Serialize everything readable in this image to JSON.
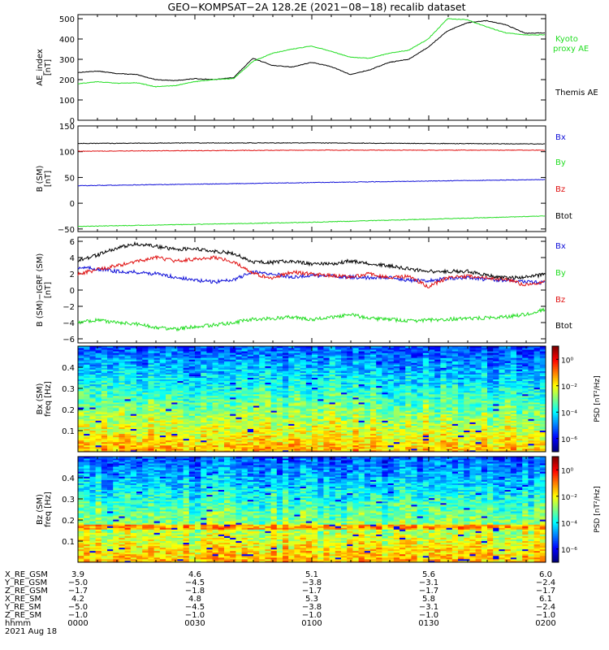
{
  "title": "GEO−KOMPSAT−2A 128.2E (2021−08−18) recalib dataset",
  "colors": {
    "black": "#000000",
    "green": "#22dd22",
    "red": "#e01010",
    "blue": "#1010d8"
  },
  "chart_data": [
    {
      "type": "line",
      "panel": "ae_index",
      "ylabel": [
        "AE_index",
        "[nT]"
      ],
      "ylim": [
        0,
        520
      ],
      "yticks": [
        0,
        100,
        200,
        300,
        400,
        500
      ],
      "x": [
        0,
        5,
        10,
        15,
        20,
        25,
        30,
        35,
        40,
        45,
        50,
        55,
        60,
        65,
        70,
        75,
        80,
        85,
        90,
        95,
        100,
        105,
        110,
        115,
        120
      ],
      "series": [
        {
          "name": "Themis AE",
          "color": "#000000",
          "values": [
            235,
            242,
            230,
            225,
            200,
            195,
            205,
            200,
            210,
            305,
            270,
            262,
            285,
            265,
            225,
            248,
            285,
            300,
            360,
            440,
            480,
            490,
            470,
            428,
            430
          ]
        },
        {
          "name": "Kyoto proxy AE",
          "color": "#22dd22",
          "values": [
            180,
            190,
            182,
            185,
            165,
            170,
            190,
            200,
            205,
            290,
            330,
            350,
            365,
            340,
            310,
            305,
            330,
            345,
            400,
            500,
            495,
            460,
            430,
            420,
            420
          ]
        }
      ],
      "legend": [
        {
          "text": "Kyoto",
          "color": "#22dd22"
        },
        {
          "text": "proxy AE",
          "color": "#22dd22"
        },
        {
          "text": "Themis AE",
          "color": "#000000"
        }
      ]
    },
    {
      "type": "line",
      "panel": "b_sm",
      "ylabel": [
        "B (SM)",
        "[nT]"
      ],
      "ylim": [
        -55,
        150
      ],
      "yticks": [
        -50,
        0,
        50,
        100,
        150
      ],
      "x": [
        0,
        30,
        60,
        90,
        120
      ],
      "series": [
        {
          "name": "Bx",
          "color": "#1010d8",
          "values": [
            34,
            37,
            40,
            43,
            46
          ]
        },
        {
          "name": "By",
          "color": "#22dd22",
          "values": [
            -45,
            -41,
            -37,
            -31,
            -25
          ]
        },
        {
          "name": "Bz",
          "color": "#e01010",
          "values": [
            101,
            102,
            103,
            103,
            103
          ]
        },
        {
          "name": "Btot",
          "color": "#000000",
          "values": [
            116,
            117,
            117,
            116,
            115
          ]
        }
      ],
      "legend": [
        {
          "text": "Bx",
          "color": "#1010d8"
        },
        {
          "text": "By",
          "color": "#22dd22"
        },
        {
          "text": "Bz",
          "color": "#e01010"
        },
        {
          "text": "Btot",
          "color": "#000000"
        }
      ]
    },
    {
      "type": "line",
      "panel": "b_minus_igrf",
      "ylabel": [
        "B (SM)−IGRF (SM)",
        "[nT]"
      ],
      "ylim": [
        -6.5,
        6.5
      ],
      "yticks": [
        -6,
        -4,
        -2,
        0,
        2,
        4,
        6
      ],
      "x": [
        0,
        5,
        10,
        15,
        20,
        25,
        30,
        35,
        40,
        45,
        50,
        55,
        60,
        65,
        70,
        75,
        80,
        85,
        90,
        95,
        100,
        105,
        110,
        115,
        120
      ],
      "series": [
        {
          "name": "Bx",
          "color": "#1010d8",
          "values": [
            2.8,
            2.6,
            2.3,
            2.2,
            2.0,
            1.6,
            1.2,
            1.0,
            1.3,
            2.2,
            2.0,
            1.6,
            1.8,
            1.7,
            1.6,
            1.5,
            1.6,
            1.2,
            1.2,
            1.4,
            1.5,
            1.3,
            1.2,
            1.0,
            0.9
          ]
        },
        {
          "name": "By",
          "color": "#22dd22",
          "values": [
            -4.0,
            -3.7,
            -4.0,
            -4.2,
            -4.6,
            -4.8,
            -4.5,
            -4.3,
            -4.0,
            -3.6,
            -3.5,
            -3.3,
            -3.6,
            -3.4,
            -3.0,
            -3.5,
            -3.6,
            -3.8,
            -3.7,
            -3.6,
            -3.5,
            -3.4,
            -3.3,
            -3.0,
            -2.4
          ]
        },
        {
          "name": "Bz",
          "color": "#e01010",
          "values": [
            2.0,
            2.5,
            3.0,
            3.5,
            4.0,
            3.6,
            3.8,
            4.0,
            3.5,
            2.0,
            1.5,
            2.2,
            2.0,
            1.8,
            1.6,
            2.0,
            1.5,
            1.7,
            0.4,
            1.5,
            1.7,
            1.5,
            1.3,
            0.6,
            1.0
          ]
        },
        {
          "name": "Btot",
          "color": "#000000",
          "values": [
            3.6,
            4.3,
            5.2,
            5.7,
            5.4,
            5.0,
            5.1,
            4.8,
            4.5,
            3.5,
            3.4,
            3.6,
            3.2,
            3.2,
            3.6,
            3.2,
            3.0,
            2.6,
            2.3,
            2.3,
            2.3,
            1.8,
            1.5,
            1.6,
            1.9
          ]
        }
      ],
      "legend": [
        {
          "text": "Bx",
          "color": "#1010d8"
        },
        {
          "text": "By",
          "color": "#22dd22"
        },
        {
          "text": "Bz",
          "color": "#e01010"
        },
        {
          "text": "Btot",
          "color": "#000000"
        }
      ]
    },
    {
      "type": "heatmap",
      "panel": "bx_spectrogram",
      "ylabel": [
        "Bx (SM)",
        "freq [Hz]"
      ],
      "ylim": [
        0,
        0.5
      ],
      "yticks": [
        0.1,
        0.2,
        0.3,
        0.4
      ],
      "colorbar": {
        "label": "PSD [nT²/Hz]",
        "ticks": [
          "10⁰",
          "10⁻²",
          "10⁻⁴",
          "10⁻⁶"
        ],
        "tick_exponents": [
          0,
          -2,
          -4,
          -6
        ],
        "range_exponents": [
          -7,
          1
        ]
      }
    },
    {
      "type": "heatmap",
      "panel": "bz_spectrogram",
      "ylabel": [
        "Bz (SM)",
        "freq [Hz]"
      ],
      "ylim": [
        0,
        0.5
      ],
      "yticks": [
        0.1,
        0.2,
        0.3,
        0.4
      ],
      "colorbar": {
        "label": "PSD [nT²/Hz]",
        "ticks": [
          "10⁰",
          "10⁻²",
          "10⁻⁴",
          "10⁻⁶"
        ],
        "tick_exponents": [
          0,
          -2,
          -4,
          -6
        ],
        "range_exponents": [
          -7,
          1
        ]
      }
    }
  ],
  "x_axis": {
    "rows": [
      {
        "label": "X_RE_GSM",
        "values": [
          "3.9",
          "4.6",
          "5.1",
          "5.6",
          "6.0"
        ]
      },
      {
        "label": "Y_RE_GSM",
        "values": [
          "−5.0",
          "−4.5",
          "−3.8",
          "−3.1",
          "−2.4"
        ]
      },
      {
        "label": "Z_RE_GSM",
        "values": [
          "−1.7",
          "−1.8",
          "−1.7",
          "−1.7",
          "−1.7"
        ]
      },
      {
        "label": "X_RE_SM",
        "values": [
          "4.2",
          "4.8",
          "5.3",
          "5.8",
          "6.1"
        ]
      },
      {
        "label": "Y_RE_SM",
        "values": [
          "−5.0",
          "−4.5",
          "−3.8",
          "−3.1",
          "−2.4"
        ]
      },
      {
        "label": "Z_RE_SM",
        "values": [
          "−1.0",
          "−1.0",
          "−1.0",
          "−1.0",
          "−1.0"
        ]
      },
      {
        "label": "hhmm",
        "values": [
          "0000",
          "0030",
          "0100",
          "0130",
          "0200"
        ]
      }
    ],
    "date": "2021 Aug 18"
  }
}
